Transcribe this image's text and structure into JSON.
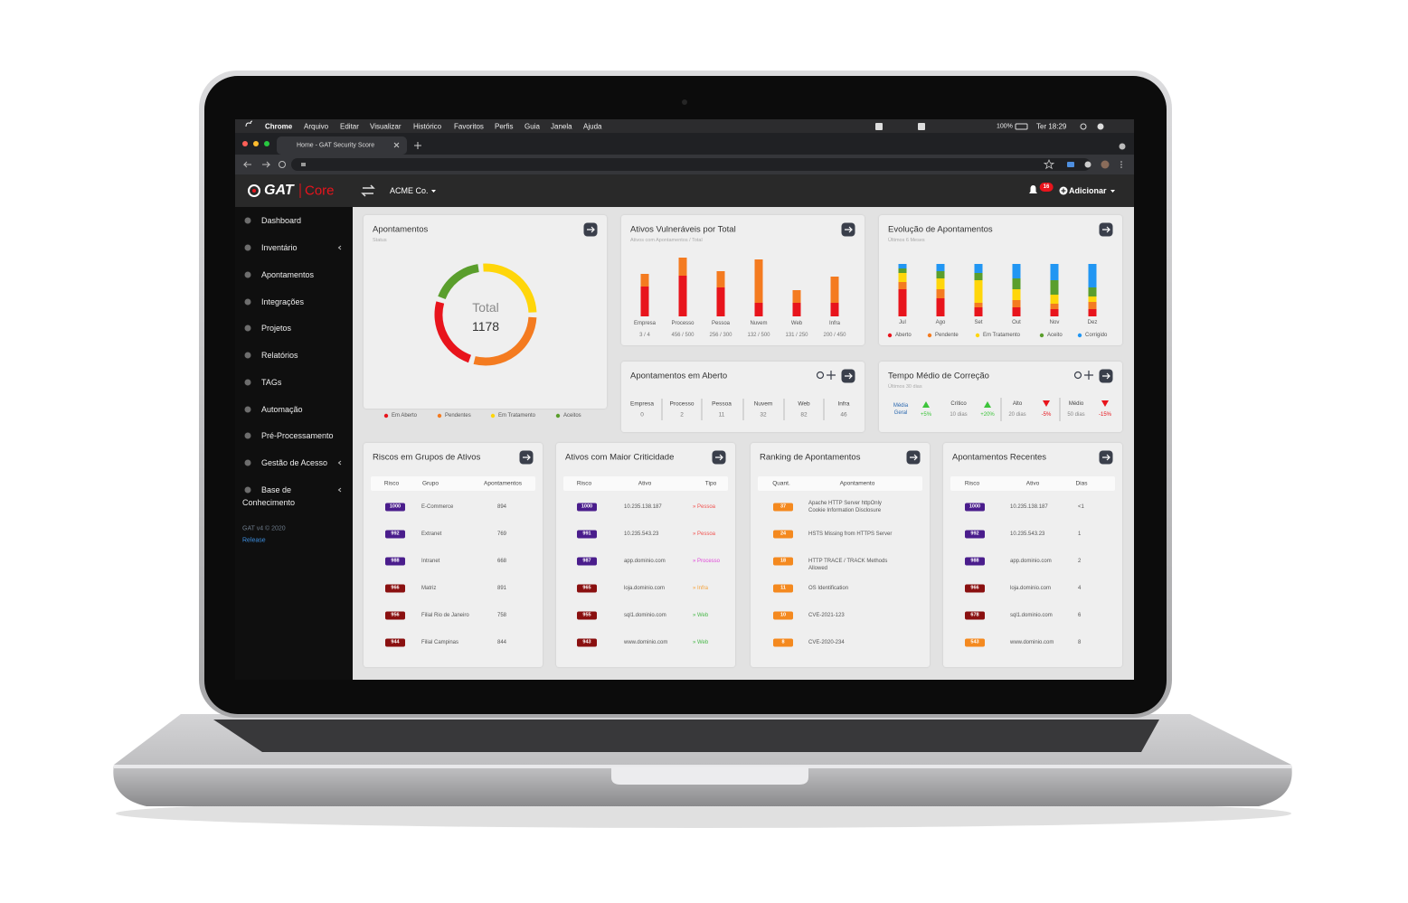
{
  "menubar": {
    "app": "Chrome",
    "menus": [
      "Arquivo",
      "Editar",
      "Visualizar",
      "Histórico",
      "Favoritos",
      "Perfis",
      "Guia",
      "Janela",
      "Ajuda"
    ],
    "battery": "100%",
    "clock": "Ter 18:29"
  },
  "browser": {
    "tab": "Home - GAT Security Score"
  },
  "header": {
    "logo": "GAT",
    "product": "Core",
    "company": "ACME Co.",
    "notifications": "16",
    "add": "Adicionar"
  },
  "sidebar": {
    "items": [
      {
        "label": "Dashboard"
      },
      {
        "label": "Inventário",
        "submenu": true
      },
      {
        "label": "Apontamentos"
      },
      {
        "label": "Integrações"
      },
      {
        "label": "Projetos"
      },
      {
        "label": "Relatórios"
      },
      {
        "label": "TAGs"
      },
      {
        "label": "Automação"
      },
      {
        "label": "Pré-Processamento"
      },
      {
        "label": "Gestão de Acesso",
        "submenu": true
      },
      {
        "label": "Base de Conhecimento",
        "submenu": true
      }
    ],
    "version": "GAT v4 © 2020",
    "release": "Release"
  },
  "chart_data": [
    {
      "type": "pie",
      "title": "Apontamentos",
      "subtitle": "Status",
      "center_label": "Total",
      "center_value": 1178,
      "categories": [
        "Em Aberto",
        "Pendentes",
        "Em Tratamento",
        "Aceitos"
      ],
      "values": [
        299,
        352,
        316,
        211
      ],
      "colors": [
        "#e8141c",
        "#f47b20",
        "#ffd60a",
        "#5a9e2c"
      ]
    },
    {
      "type": "bar",
      "title": "Ativos Vulneráveis por Total",
      "subtitle": "Ativos com Apontamentos / Total",
      "categories": [
        "Empresa",
        "Processo",
        "Pessoa",
        "Nuvem",
        "Web",
        "Infra"
      ],
      "totals": [
        "3 / 4",
        "456 / 500",
        "256 / 300",
        "132 / 500",
        "131 / 250",
        "200 / 450"
      ],
      "series": [
        {
          "color": "#e8141c",
          "values": [
            33,
            45,
            32,
            15,
            15,
            15
          ]
        },
        {
          "color": "#f47b20",
          "values": [
            14,
            20,
            18,
            48,
            14,
            29
          ]
        }
      ]
    },
    {
      "type": "bar",
      "title": "Evolução de Apontamentos",
      "subtitle": "Últimos 6 Meses",
      "categories": [
        "Jul",
        "Ago",
        "Set",
        "Out",
        "Nov",
        "Dez"
      ],
      "series": [
        {
          "name": "Aberto",
          "color": "#e8141c",
          "values": [
            30,
            20,
            10,
            10,
            8,
            8
          ]
        },
        {
          "name": "Pendente",
          "color": "#f47b20",
          "values": [
            8,
            10,
            5,
            8,
            6,
            8
          ]
        },
        {
          "name": "Em Tratamento",
          "color": "#ffd60a",
          "values": [
            10,
            12,
            25,
            12,
            10,
            6
          ]
        },
        {
          "name": "Aceito",
          "color": "#5a9e2c",
          "values": [
            5,
            8,
            8,
            12,
            16,
            10
          ]
        },
        {
          "name": "Corrigido",
          "color": "#2196f3",
          "values": [
            5,
            8,
            10,
            16,
            18,
            26
          ]
        }
      ]
    }
  ],
  "open_findings": {
    "title": "Apontamentos em Aberto",
    "items": [
      {
        "label": "Empresa",
        "value": 0
      },
      {
        "label": "Processo",
        "value": 2
      },
      {
        "label": "Pessoa",
        "value": 11
      },
      {
        "label": "Nuvem",
        "value": 32
      },
      {
        "label": "Web",
        "value": 82
      },
      {
        "label": "Infra",
        "value": 46
      }
    ]
  },
  "fix_time": {
    "title": "Tempo Médio de Correção",
    "subtitle": "Últimos 30 dias",
    "items": [
      {
        "label": "Média Geral",
        "change": "+5%",
        "trend": "up"
      },
      {
        "label": "Crítico",
        "days": "10 dias",
        "change": "+20%",
        "trend": "up"
      },
      {
        "label": "Alto",
        "days": "20 dias",
        "change": "-5%",
        "trend": "down"
      },
      {
        "label": "Médio",
        "days": "50 dias",
        "change": "-15%",
        "trend": "down"
      }
    ]
  },
  "tables": [
    {
      "title": "Riscos em Grupos de Ativos",
      "columns": [
        "Risco",
        "Grupo",
        "Apontamentos"
      ],
      "rows": [
        [
          1000,
          "E-Commerce",
          894
        ],
        [
          992,
          "Extranet",
          769
        ],
        [
          988,
          "Intranet",
          668
        ],
        [
          966,
          "Matriz",
          891
        ],
        [
          956,
          "Filial Rio de Janeiro",
          758
        ],
        [
          944,
          "Filial Campinas",
          844
        ]
      ],
      "badge_colors": [
        "#4a1d8c",
        "#4a1d8c",
        "#4a1d8c",
        "#8a1010",
        "#8a1010",
        "#8a1010"
      ]
    },
    {
      "title": "Ativos com Maior Criticidade",
      "columns": [
        "Risco",
        "Ativo",
        "Tipo"
      ],
      "rows": [
        [
          1000,
          "10.235.138.187",
          "» Pessoa"
        ],
        [
          991,
          "10.235.543.23",
          "» Pessoa"
        ],
        [
          987,
          "app.dominio.com",
          "» Processo"
        ],
        [
          965,
          "loja.dominio.com",
          "» Infra"
        ],
        [
          955,
          "sql1.dominio.com",
          "» Web"
        ],
        [
          943,
          "www.dominio.com",
          "» Web"
        ]
      ],
      "badge_colors": [
        "#4a1d8c",
        "#4a1d8c",
        "#4a1d8c",
        "#8a1010",
        "#8a1010",
        "#8a1010"
      ],
      "type_colors": [
        "#f0524f",
        "#f0524f",
        "#e048d8",
        "#f5a23a",
        "#49b84a",
        "#49b84a"
      ]
    },
    {
      "title": "Ranking de Apontamentos",
      "columns": [
        "Quant.",
        "Apontamento"
      ],
      "rows": [
        [
          37,
          "Apache HTTP Server httpOnly Cookie Information Disclosure"
        ],
        [
          24,
          "HSTS Missing from HTTPS Server"
        ],
        [
          18,
          "HTTP TRACE / TRACK Methods Allowed"
        ],
        [
          11,
          "OS Identification"
        ],
        [
          10,
          "CVE-2021-123"
        ],
        [
          8,
          "CVE-2020-234"
        ]
      ],
      "badge_colors": [
        "#f4891f",
        "#f4891f",
        "#f4891f",
        "#f4891f",
        "#f4891f",
        "#f4891f"
      ]
    },
    {
      "title": "Apontamentos Recentes",
      "columns": [
        "Risco",
        "Ativo",
        "Dias"
      ],
      "rows": [
        [
          1000,
          "10.235.138.187",
          "<1"
        ],
        [
          992,
          "10.235.543.23",
          1
        ],
        [
          988,
          "app.dominio.com",
          2
        ],
        [
          966,
          "loja.dominio.com",
          4
        ],
        [
          678,
          "sql1.dominio.com",
          6
        ],
        [
          543,
          "www.dominio.com",
          8
        ]
      ],
      "badge_colors": [
        "#4a1d8c",
        "#4a1d8c",
        "#4a1d8c",
        "#8a1010",
        "#8a1010",
        "#f4891f"
      ]
    }
  ]
}
